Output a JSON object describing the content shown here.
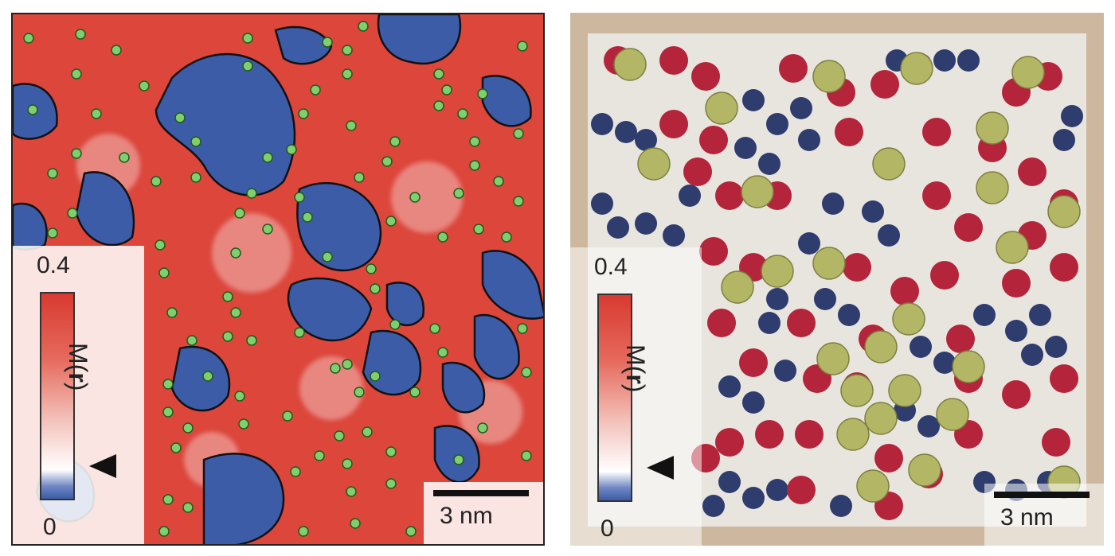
{
  "colorbar": {
    "max_label": "0.4",
    "min_label": "0",
    "quantity": "M(",
    "quantity_bold": "r",
    "quantity_close": ")"
  },
  "scale": {
    "label": "3 nm"
  },
  "panels": [
    {
      "id": "left",
      "content": "nematic-map-with-dopant-sites"
    },
    {
      "id": "right",
      "content": "berry-tart-photo"
    }
  ],
  "colors": {
    "red": "#d83a30",
    "blue": "#3d5ca8",
    "dot": "#7fcf6c",
    "raspberry": "#b4243a",
    "blueberry": "#2e3c6e",
    "grape": "#b3b765"
  }
}
